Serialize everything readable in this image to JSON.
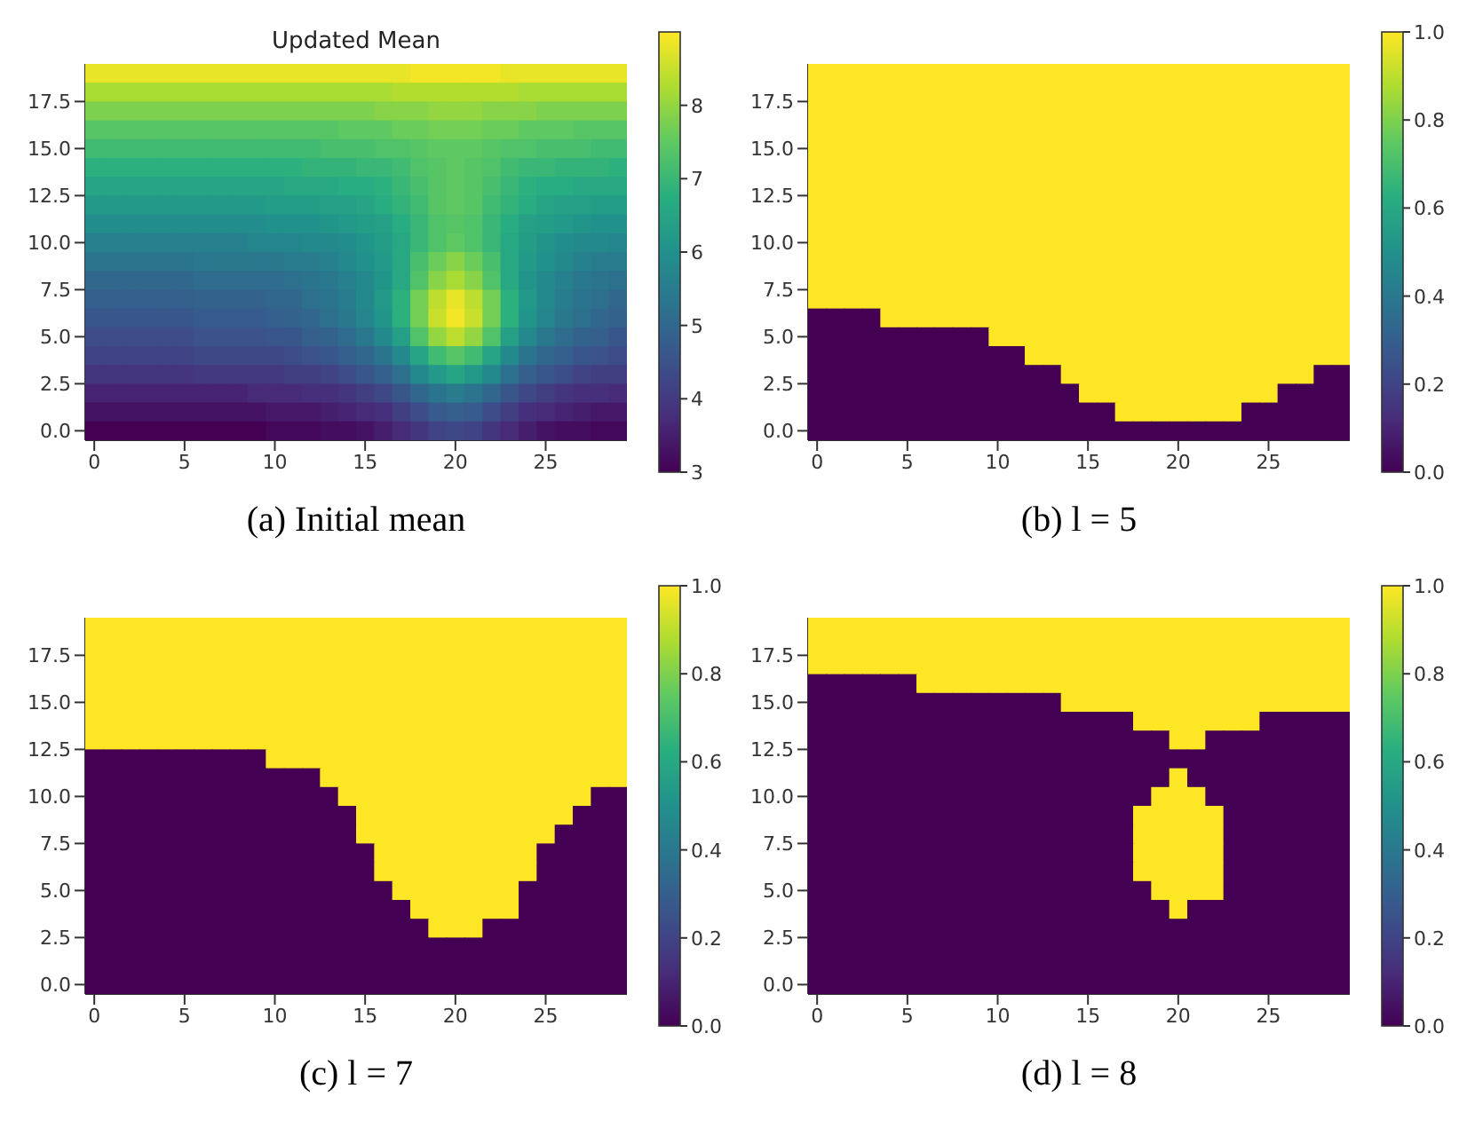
{
  "chart_data": [
    {
      "type": "heatmap",
      "title": "Updated Mean",
      "annotations": [
        "(a) Initial mean"
      ],
      "xlim": [
        -0.5,
        29.5
      ],
      "xticks": [
        0,
        5,
        10,
        15,
        20,
        25
      ],
      "ylim": [
        -0.5,
        19.5
      ],
      "yticks": [
        {
          "value": 0,
          "label": "0.0"
        },
        {
          "value": 2.5,
          "label": "2.5"
        },
        {
          "value": 5,
          "label": "5.0"
        },
        {
          "value": 7.5,
          "label": "7.5"
        },
        {
          "value": 10,
          "label": "10.0"
        },
        {
          "value": 12.5,
          "label": "12.5"
        },
        {
          "value": 15,
          "label": "15.0"
        },
        {
          "value": 17.5,
          "label": "17.5"
        }
      ],
      "clim": [
        3,
        9
      ],
      "cticks": [
        3,
        4,
        5,
        6,
        7,
        8
      ],
      "cells": [
        [
          8.8,
          8.8,
          8.8,
          8.8,
          8.8,
          8.8,
          8.8,
          8.8,
          8.8,
          8.8,
          8.8,
          8.8,
          8.8,
          8.8,
          8.8,
          8.8,
          8.8,
          8.8,
          8.9,
          8.9,
          8.9,
          8.9,
          8.9,
          8.8,
          8.8,
          8.8,
          8.8,
          8.8,
          8.8,
          8.8
        ],
        [
          8.2,
          8.2,
          8.2,
          8.2,
          8.2,
          8.2,
          8.2,
          8.2,
          8.2,
          8.2,
          8.2,
          8.2,
          8.2,
          8.2,
          8.2,
          8.2,
          8.2,
          8.3,
          8.3,
          8.3,
          8.3,
          8.3,
          8.3,
          8.3,
          8.2,
          8.2,
          8.2,
          8.2,
          8.2,
          8.2
        ],
        [
          7.8,
          7.8,
          7.8,
          7.8,
          7.8,
          7.8,
          7.8,
          7.8,
          7.8,
          7.8,
          7.8,
          7.8,
          7.8,
          7.8,
          7.8,
          7.8,
          7.9,
          7.9,
          7.9,
          8.0,
          8.0,
          8.0,
          7.9,
          7.9,
          7.9,
          7.8,
          7.8,
          7.8,
          7.8,
          7.8
        ],
        [
          7.4,
          7.4,
          7.4,
          7.4,
          7.4,
          7.4,
          7.4,
          7.4,
          7.4,
          7.4,
          7.4,
          7.4,
          7.4,
          7.4,
          7.5,
          7.5,
          7.5,
          7.6,
          7.6,
          7.7,
          7.7,
          7.7,
          7.6,
          7.6,
          7.5,
          7.5,
          7.5,
          7.4,
          7.4,
          7.4
        ],
        [
          7.1,
          7.1,
          7.1,
          7.1,
          7.1,
          7.1,
          7.1,
          7.1,
          7.1,
          7.1,
          7.1,
          7.1,
          7.1,
          7.2,
          7.2,
          7.2,
          7.3,
          7.3,
          7.4,
          7.5,
          7.5,
          7.5,
          7.4,
          7.3,
          7.3,
          7.2,
          7.2,
          7.2,
          7.1,
          7.1
        ],
        [
          6.8,
          6.8,
          6.8,
          6.8,
          6.8,
          6.8,
          6.8,
          6.8,
          6.8,
          6.8,
          6.8,
          6.8,
          6.9,
          6.9,
          6.9,
          7.0,
          7.0,
          7.1,
          7.3,
          7.4,
          7.5,
          7.4,
          7.3,
          7.1,
          7.0,
          7.0,
          6.9,
          6.9,
          6.9,
          6.8
        ],
        [
          6.5,
          6.5,
          6.5,
          6.5,
          6.5,
          6.5,
          6.5,
          6.5,
          6.5,
          6.5,
          6.5,
          6.6,
          6.6,
          6.6,
          6.7,
          6.7,
          6.8,
          7.0,
          7.2,
          7.4,
          7.5,
          7.4,
          7.2,
          7.0,
          6.8,
          6.7,
          6.7,
          6.6,
          6.6,
          6.6
        ],
        [
          6.2,
          6.2,
          6.2,
          6.2,
          6.2,
          6.2,
          6.2,
          6.2,
          6.2,
          6.2,
          6.3,
          6.3,
          6.3,
          6.4,
          6.4,
          6.5,
          6.7,
          6.9,
          7.1,
          7.4,
          7.5,
          7.4,
          7.1,
          6.9,
          6.7,
          6.5,
          6.4,
          6.4,
          6.3,
          6.3
        ],
        [
          5.9,
          5.9,
          5.9,
          5.9,
          5.9,
          5.9,
          5.9,
          5.9,
          5.9,
          5.9,
          6.0,
          6.0,
          6.0,
          6.1,
          6.2,
          6.3,
          6.4,
          6.7,
          7.0,
          7.3,
          7.4,
          7.3,
          7.0,
          6.7,
          6.4,
          6.3,
          6.2,
          6.1,
          6.0,
          6.0
        ],
        [
          5.6,
          5.6,
          5.6,
          5.6,
          5.6,
          5.6,
          5.6,
          5.6,
          5.6,
          5.7,
          5.7,
          5.7,
          5.8,
          5.8,
          5.9,
          6.1,
          6.3,
          6.6,
          7.0,
          7.3,
          7.5,
          7.3,
          7.0,
          6.6,
          6.3,
          6.1,
          5.9,
          5.8,
          5.8,
          5.7
        ],
        [
          5.3,
          5.3,
          5.3,
          5.3,
          5.3,
          5.3,
          5.4,
          5.4,
          5.4,
          5.4,
          5.4,
          5.5,
          5.5,
          5.6,
          5.8,
          6.0,
          6.2,
          6.6,
          7.2,
          7.6,
          7.9,
          7.6,
          7.2,
          6.6,
          6.2,
          6.0,
          5.8,
          5.6,
          5.5,
          5.5
        ],
        [
          5.0,
          5.0,
          5.0,
          5.0,
          5.0,
          5.0,
          5.1,
          5.1,
          5.1,
          5.1,
          5.1,
          5.2,
          5.3,
          5.4,
          5.6,
          5.8,
          6.1,
          6.6,
          7.3,
          7.9,
          8.2,
          7.9,
          7.3,
          6.6,
          6.1,
          5.8,
          5.6,
          5.4,
          5.3,
          5.2
        ],
        [
          4.8,
          4.8,
          4.8,
          4.8,
          4.8,
          4.8,
          4.9,
          4.9,
          4.9,
          4.9,
          5.0,
          5.0,
          5.2,
          5.3,
          5.5,
          5.8,
          6.2,
          6.8,
          7.7,
          8.4,
          8.8,
          8.4,
          7.7,
          6.8,
          6.2,
          5.8,
          5.5,
          5.3,
          5.2,
          5.0
        ],
        [
          4.6,
          4.6,
          4.6,
          4.6,
          4.6,
          4.6,
          4.7,
          4.7,
          4.7,
          4.7,
          4.8,
          4.9,
          5.0,
          5.2,
          5.4,
          5.7,
          6.1,
          6.8,
          7.7,
          8.5,
          8.9,
          8.5,
          7.7,
          6.8,
          6.1,
          5.7,
          5.4,
          5.2,
          5.0,
          4.9
        ],
        [
          4.4,
          4.4,
          4.4,
          4.4,
          4.4,
          4.4,
          4.5,
          4.5,
          4.5,
          4.5,
          4.6,
          4.6,
          4.8,
          4.9,
          5.1,
          5.4,
          5.8,
          6.4,
          7.3,
          8.0,
          8.4,
          8.0,
          7.3,
          6.4,
          5.8,
          5.4,
          5.1,
          4.9,
          4.8,
          4.6
        ],
        [
          4.2,
          4.2,
          4.2,
          4.2,
          4.2,
          4.2,
          4.3,
          4.3,
          4.3,
          4.3,
          4.3,
          4.4,
          4.5,
          4.6,
          4.8,
          5.0,
          5.3,
          5.8,
          6.5,
          7.1,
          7.4,
          7.1,
          6.5,
          5.8,
          5.3,
          5.0,
          4.8,
          4.6,
          4.5,
          4.4
        ],
        [
          3.9,
          3.9,
          3.9,
          3.9,
          3.9,
          3.9,
          4.0,
          4.0,
          4.0,
          4.0,
          4.0,
          4.1,
          4.1,
          4.2,
          4.4,
          4.6,
          4.8,
          5.2,
          5.8,
          6.2,
          6.5,
          6.2,
          5.8,
          5.2,
          4.8,
          4.6,
          4.4,
          4.2,
          4.1,
          4.1
        ],
        [
          3.6,
          3.6,
          3.6,
          3.6,
          3.6,
          3.6,
          3.6,
          3.6,
          3.6,
          3.7,
          3.7,
          3.7,
          3.8,
          3.8,
          3.9,
          4.1,
          4.3,
          4.6,
          5.0,
          5.3,
          5.5,
          5.3,
          5.0,
          4.6,
          4.3,
          4.1,
          3.9,
          3.8,
          3.8,
          3.7
        ],
        [
          3.3,
          3.3,
          3.3,
          3.3,
          3.3,
          3.3,
          3.3,
          3.3,
          3.3,
          3.3,
          3.4,
          3.4,
          3.4,
          3.5,
          3.6,
          3.7,
          3.8,
          4.1,
          4.4,
          4.7,
          4.8,
          4.7,
          4.4,
          4.1,
          3.8,
          3.7,
          3.6,
          3.5,
          3.4,
          3.4
        ],
        [
          3.0,
          3.0,
          3.0,
          3.0,
          3.0,
          3.0,
          3.0,
          3.0,
          3.0,
          3.0,
          3.1,
          3.1,
          3.1,
          3.2,
          3.2,
          3.3,
          3.5,
          3.7,
          3.9,
          4.2,
          4.3,
          4.2,
          3.9,
          3.7,
          3.5,
          3.3,
          3.2,
          3.2,
          3.1,
          3.1
        ]
      ]
    },
    {
      "type": "heatmap",
      "annotations": [
        "(b) l = 5"
      ],
      "xlim": [
        -0.5,
        29.5
      ],
      "xticks": [
        0,
        5,
        10,
        15,
        20,
        25
      ],
      "ylim": [
        -0.5,
        19.5
      ],
      "yticks": [
        {
          "value": 0,
          "label": "0.0"
        },
        {
          "value": 2.5,
          "label": "2.5"
        },
        {
          "value": 5,
          "label": "5.0"
        },
        {
          "value": 7.5,
          "label": "7.5"
        },
        {
          "value": 10,
          "label": "10.0"
        },
        {
          "value": 12.5,
          "label": "12.5"
        },
        {
          "value": 15,
          "label": "15.0"
        },
        {
          "value": 17.5,
          "label": "17.5"
        }
      ],
      "clim": [
        0,
        1
      ],
      "cticks": [
        {
          "value": 0,
          "label": "0.0"
        },
        {
          "value": 0.2,
          "label": "0.2"
        },
        {
          "value": 0.4,
          "label": "0.4"
        },
        {
          "value": 0.6,
          "label": "0.6"
        },
        {
          "value": 0.8,
          "label": "0.8"
        },
        {
          "value": 1,
          "label": "1.0"
        }
      ],
      "cells": [
        [
          1,
          1,
          1,
          1,
          1,
          1,
          1,
          1,
          1,
          1,
          1,
          1,
          1,
          1,
          1,
          1,
          1,
          1,
          1,
          1,
          1,
          1,
          1,
          1,
          1,
          1,
          1,
          1,
          1,
          1
        ],
        [
          1,
          1,
          1,
          1,
          1,
          1,
          1,
          1,
          1,
          1,
          1,
          1,
          1,
          1,
          1,
          1,
          1,
          1,
          1,
          1,
          1,
          1,
          1,
          1,
          1,
          1,
          1,
          1,
          1,
          1
        ],
        [
          1,
          1,
          1,
          1,
          1,
          1,
          1,
          1,
          1,
          1,
          1,
          1,
          1,
          1,
          1,
          1,
          1,
          1,
          1,
          1,
          1,
          1,
          1,
          1,
          1,
          1,
          1,
          1,
          1,
          1
        ],
        [
          1,
          1,
          1,
          1,
          1,
          1,
          1,
          1,
          1,
          1,
          1,
          1,
          1,
          1,
          1,
          1,
          1,
          1,
          1,
          1,
          1,
          1,
          1,
          1,
          1,
          1,
          1,
          1,
          1,
          1
        ],
        [
          1,
          1,
          1,
          1,
          1,
          1,
          1,
          1,
          1,
          1,
          1,
          1,
          1,
          1,
          1,
          1,
          1,
          1,
          1,
          1,
          1,
          1,
          1,
          1,
          1,
          1,
          1,
          1,
          1,
          1
        ],
        [
          1,
          1,
          1,
          1,
          1,
          1,
          1,
          1,
          1,
          1,
          1,
          1,
          1,
          1,
          1,
          1,
          1,
          1,
          1,
          1,
          1,
          1,
          1,
          1,
          1,
          1,
          1,
          1,
          1,
          1
        ],
        [
          1,
          1,
          1,
          1,
          1,
          1,
          1,
          1,
          1,
          1,
          1,
          1,
          1,
          1,
          1,
          1,
          1,
          1,
          1,
          1,
          1,
          1,
          1,
          1,
          1,
          1,
          1,
          1,
          1,
          1
        ],
        [
          1,
          1,
          1,
          1,
          1,
          1,
          1,
          1,
          1,
          1,
          1,
          1,
          1,
          1,
          1,
          1,
          1,
          1,
          1,
          1,
          1,
          1,
          1,
          1,
          1,
          1,
          1,
          1,
          1,
          1
        ],
        [
          1,
          1,
          1,
          1,
          1,
          1,
          1,
          1,
          1,
          1,
          1,
          1,
          1,
          1,
          1,
          1,
          1,
          1,
          1,
          1,
          1,
          1,
          1,
          1,
          1,
          1,
          1,
          1,
          1,
          1
        ],
        [
          1,
          1,
          1,
          1,
          1,
          1,
          1,
          1,
          1,
          1,
          1,
          1,
          1,
          1,
          1,
          1,
          1,
          1,
          1,
          1,
          1,
          1,
          1,
          1,
          1,
          1,
          1,
          1,
          1,
          1
        ],
        [
          1,
          1,
          1,
          1,
          1,
          1,
          1,
          1,
          1,
          1,
          1,
          1,
          1,
          1,
          1,
          1,
          1,
          1,
          1,
          1,
          1,
          1,
          1,
          1,
          1,
          1,
          1,
          1,
          1,
          1
        ],
        [
          1,
          1,
          1,
          1,
          1,
          1,
          1,
          1,
          1,
          1,
          1,
          1,
          1,
          1,
          1,
          1,
          1,
          1,
          1,
          1,
          1,
          1,
          1,
          1,
          1,
          1,
          1,
          1,
          1,
          1
        ],
        [
          1,
          1,
          1,
          1,
          1,
          1,
          1,
          1,
          1,
          1,
          1,
          1,
          1,
          1,
          1,
          1,
          1,
          1,
          1,
          1,
          1,
          1,
          1,
          1,
          1,
          1,
          1,
          1,
          1,
          1
        ],
        [
          0,
          0,
          0,
          0,
          1,
          1,
          1,
          1,
          1,
          1,
          1,
          1,
          1,
          1,
          1,
          1,
          1,
          1,
          1,
          1,
          1,
          1,
          1,
          1,
          1,
          1,
          1,
          1,
          1,
          1
        ],
        [
          0,
          0,
          0,
          0,
          0,
          0,
          0,
          0,
          0,
          0,
          1,
          1,
          1,
          1,
          1,
          1,
          1,
          1,
          1,
          1,
          1,
          1,
          1,
          1,
          1,
          1,
          1,
          1,
          1,
          1
        ],
        [
          0,
          0,
          0,
          0,
          0,
          0,
          0,
          0,
          0,
          0,
          0,
          0,
          1,
          1,
          1,
          1,
          1,
          1,
          1,
          1,
          1,
          1,
          1,
          1,
          1,
          1,
          1,
          1,
          1,
          1
        ],
        [
          0,
          0,
          0,
          0,
          0,
          0,
          0,
          0,
          0,
          0,
          0,
          0,
          0,
          0,
          1,
          1,
          1,
          1,
          1,
          1,
          1,
          1,
          1,
          1,
          1,
          1,
          1,
          1,
          0,
          0
        ],
        [
          0,
          0,
          0,
          0,
          0,
          0,
          0,
          0,
          0,
          0,
          0,
          0,
          0,
          0,
          0,
          1,
          1,
          1,
          1,
          1,
          1,
          1,
          1,
          1,
          1,
          1,
          0,
          0,
          0,
          0
        ],
        [
          0,
          0,
          0,
          0,
          0,
          0,
          0,
          0,
          0,
          0,
          0,
          0,
          0,
          0,
          0,
          0,
          0,
          1,
          1,
          1,
          1,
          1,
          1,
          1,
          0,
          0,
          0,
          0,
          0,
          0
        ],
        [
          0,
          0,
          0,
          0,
          0,
          0,
          0,
          0,
          0,
          0,
          0,
          0,
          0,
          0,
          0,
          0,
          0,
          0,
          0,
          0,
          0,
          0,
          0,
          0,
          0,
          0,
          0,
          0,
          0,
          0
        ]
      ]
    },
    {
      "type": "heatmap",
      "annotations": [
        "(c) l = 7"
      ],
      "xlim": [
        -0.5,
        29.5
      ],
      "xticks": [
        0,
        5,
        10,
        15,
        20,
        25
      ],
      "ylim": [
        -0.5,
        19.5
      ],
      "yticks": [
        {
          "value": 0,
          "label": "0.0"
        },
        {
          "value": 2.5,
          "label": "2.5"
        },
        {
          "value": 5,
          "label": "5.0"
        },
        {
          "value": 7.5,
          "label": "7.5"
        },
        {
          "value": 10,
          "label": "10.0"
        },
        {
          "value": 12.5,
          "label": "12.5"
        },
        {
          "value": 15,
          "label": "15.0"
        },
        {
          "value": 17.5,
          "label": "17.5"
        }
      ],
      "clim": [
        0,
        1
      ],
      "cticks": [
        {
          "value": 0,
          "label": "0.0"
        },
        {
          "value": 0.2,
          "label": "0.2"
        },
        {
          "value": 0.4,
          "label": "0.4"
        },
        {
          "value": 0.6,
          "label": "0.6"
        },
        {
          "value": 0.8,
          "label": "0.8"
        },
        {
          "value": 1,
          "label": "1.0"
        }
      ],
      "cells": [
        [
          1,
          1,
          1,
          1,
          1,
          1,
          1,
          1,
          1,
          1,
          1,
          1,
          1,
          1,
          1,
          1,
          1,
          1,
          1,
          1,
          1,
          1,
          1,
          1,
          1,
          1,
          1,
          1,
          1,
          1
        ],
        [
          1,
          1,
          1,
          1,
          1,
          1,
          1,
          1,
          1,
          1,
          1,
          1,
          1,
          1,
          1,
          1,
          1,
          1,
          1,
          1,
          1,
          1,
          1,
          1,
          1,
          1,
          1,
          1,
          1,
          1
        ],
        [
          1,
          1,
          1,
          1,
          1,
          1,
          1,
          1,
          1,
          1,
          1,
          1,
          1,
          1,
          1,
          1,
          1,
          1,
          1,
          1,
          1,
          1,
          1,
          1,
          1,
          1,
          1,
          1,
          1,
          1
        ],
        [
          1,
          1,
          1,
          1,
          1,
          1,
          1,
          1,
          1,
          1,
          1,
          1,
          1,
          1,
          1,
          1,
          1,
          1,
          1,
          1,
          1,
          1,
          1,
          1,
          1,
          1,
          1,
          1,
          1,
          1
        ],
        [
          1,
          1,
          1,
          1,
          1,
          1,
          1,
          1,
          1,
          1,
          1,
          1,
          1,
          1,
          1,
          1,
          1,
          1,
          1,
          1,
          1,
          1,
          1,
          1,
          1,
          1,
          1,
          1,
          1,
          1
        ],
        [
          1,
          1,
          1,
          1,
          1,
          1,
          1,
          1,
          1,
          1,
          1,
          1,
          1,
          1,
          1,
          1,
          1,
          1,
          1,
          1,
          1,
          1,
          1,
          1,
          1,
          1,
          1,
          1,
          1,
          1
        ],
        [
          1,
          1,
          1,
          1,
          1,
          1,
          1,
          1,
          1,
          1,
          1,
          1,
          1,
          1,
          1,
          1,
          1,
          1,
          1,
          1,
          1,
          1,
          1,
          1,
          1,
          1,
          1,
          1,
          1,
          1
        ],
        [
          0,
          0,
          0,
          0,
          0,
          0,
          0,
          0,
          0,
          0,
          1,
          1,
          1,
          1,
          1,
          1,
          1,
          1,
          1,
          1,
          1,
          1,
          1,
          1,
          1,
          1,
          1,
          1,
          1,
          1
        ],
        [
          0,
          0,
          0,
          0,
          0,
          0,
          0,
          0,
          0,
          0,
          0,
          0,
          0,
          1,
          1,
          1,
          1,
          1,
          1,
          1,
          1,
          1,
          1,
          1,
          1,
          1,
          1,
          1,
          1,
          1
        ],
        [
          0,
          0,
          0,
          0,
          0,
          0,
          0,
          0,
          0,
          0,
          0,
          0,
          0,
          0,
          1,
          1,
          1,
          1,
          1,
          1,
          1,
          1,
          1,
          1,
          1,
          1,
          1,
          1,
          0,
          0
        ],
        [
          0,
          0,
          0,
          0,
          0,
          0,
          0,
          0,
          0,
          0,
          0,
          0,
          0,
          0,
          0,
          1,
          1,
          1,
          1,
          1,
          1,
          1,
          1,
          1,
          1,
          1,
          1,
          0,
          0,
          0
        ],
        [
          0,
          0,
          0,
          0,
          0,
          0,
          0,
          0,
          0,
          0,
          0,
          0,
          0,
          0,
          0,
          1,
          1,
          1,
          1,
          1,
          1,
          1,
          1,
          1,
          1,
          1,
          0,
          0,
          0,
          0
        ],
        [
          0,
          0,
          0,
          0,
          0,
          0,
          0,
          0,
          0,
          0,
          0,
          0,
          0,
          0,
          0,
          0,
          1,
          1,
          1,
          1,
          1,
          1,
          1,
          1,
          1,
          0,
          0,
          0,
          0,
          0
        ],
        [
          0,
          0,
          0,
          0,
          0,
          0,
          0,
          0,
          0,
          0,
          0,
          0,
          0,
          0,
          0,
          0,
          1,
          1,
          1,
          1,
          1,
          1,
          1,
          1,
          1,
          0,
          0,
          0,
          0,
          0
        ],
        [
          0,
          0,
          0,
          0,
          0,
          0,
          0,
          0,
          0,
          0,
          0,
          0,
          0,
          0,
          0,
          0,
          0,
          1,
          1,
          1,
          1,
          1,
          1,
          1,
          0,
          0,
          0,
          0,
          0,
          0
        ],
        [
          0,
          0,
          0,
          0,
          0,
          0,
          0,
          0,
          0,
          0,
          0,
          0,
          0,
          0,
          0,
          0,
          0,
          0,
          1,
          1,
          1,
          1,
          1,
          1,
          0,
          0,
          0,
          0,
          0,
          0
        ],
        [
          0,
          0,
          0,
          0,
          0,
          0,
          0,
          0,
          0,
          0,
          0,
          0,
          0,
          0,
          0,
          0,
          0,
          0,
          0,
          1,
          1,
          1,
          0,
          0,
          0,
          0,
          0,
          0,
          0,
          0
        ],
        [
          0,
          0,
          0,
          0,
          0,
          0,
          0,
          0,
          0,
          0,
          0,
          0,
          0,
          0,
          0,
          0,
          0,
          0,
          0,
          0,
          0,
          0,
          0,
          0,
          0,
          0,
          0,
          0,
          0,
          0
        ],
        [
          0,
          0,
          0,
          0,
          0,
          0,
          0,
          0,
          0,
          0,
          0,
          0,
          0,
          0,
          0,
          0,
          0,
          0,
          0,
          0,
          0,
          0,
          0,
          0,
          0,
          0,
          0,
          0,
          0,
          0
        ],
        [
          0,
          0,
          0,
          0,
          0,
          0,
          0,
          0,
          0,
          0,
          0,
          0,
          0,
          0,
          0,
          0,
          0,
          0,
          0,
          0,
          0,
          0,
          0,
          0,
          0,
          0,
          0,
          0,
          0,
          0
        ]
      ]
    },
    {
      "type": "heatmap",
      "annotations": [
        "(d) l = 8"
      ],
      "xlim": [
        -0.5,
        29.5
      ],
      "xticks": [
        0,
        5,
        10,
        15,
        20,
        25
      ],
      "ylim": [
        -0.5,
        19.5
      ],
      "yticks": [
        {
          "value": 0,
          "label": "0.0"
        },
        {
          "value": 2.5,
          "label": "2.5"
        },
        {
          "value": 5,
          "label": "5.0"
        },
        {
          "value": 7.5,
          "label": "7.5"
        },
        {
          "value": 10,
          "label": "10.0"
        },
        {
          "value": 12.5,
          "label": "12.5"
        },
        {
          "value": 15,
          "label": "15.0"
        },
        {
          "value": 17.5,
          "label": "17.5"
        }
      ],
      "clim": [
        0,
        1
      ],
      "cticks": [
        {
          "value": 0,
          "label": "0.0"
        },
        {
          "value": 0.2,
          "label": "0.2"
        },
        {
          "value": 0.4,
          "label": "0.4"
        },
        {
          "value": 0.6,
          "label": "0.6"
        },
        {
          "value": 0.8,
          "label": "0.8"
        },
        {
          "value": 1,
          "label": "1.0"
        }
      ],
      "cells": [
        [
          1,
          1,
          1,
          1,
          1,
          1,
          1,
          1,
          1,
          1,
          1,
          1,
          1,
          1,
          1,
          1,
          1,
          1,
          1,
          1,
          1,
          1,
          1,
          1,
          1,
          1,
          1,
          1,
          1,
          1
        ],
        [
          1,
          1,
          1,
          1,
          1,
          1,
          1,
          1,
          1,
          1,
          1,
          1,
          1,
          1,
          1,
          1,
          1,
          1,
          1,
          1,
          1,
          1,
          1,
          1,
          1,
          1,
          1,
          1,
          1,
          1
        ],
        [
          1,
          1,
          1,
          1,
          1,
          1,
          1,
          1,
          1,
          1,
          1,
          1,
          1,
          1,
          1,
          1,
          1,
          1,
          1,
          1,
          1,
          1,
          1,
          1,
          1,
          1,
          1,
          1,
          1,
          1
        ],
        [
          0,
          0,
          0,
          0,
          0,
          0,
          1,
          1,
          1,
          1,
          1,
          1,
          1,
          1,
          1,
          1,
          1,
          1,
          1,
          1,
          1,
          1,
          1,
          1,
          1,
          1,
          1,
          1,
          1,
          1
        ],
        [
          0,
          0,
          0,
          0,
          0,
          0,
          0,
          0,
          0,
          0,
          0,
          0,
          0,
          0,
          1,
          1,
          1,
          1,
          1,
          1,
          1,
          1,
          1,
          1,
          1,
          1,
          1,
          1,
          1,
          1
        ],
        [
          0,
          0,
          0,
          0,
          0,
          0,
          0,
          0,
          0,
          0,
          0,
          0,
          0,
          0,
          0,
          0,
          0,
          0,
          1,
          1,
          1,
          1,
          1,
          1,
          1,
          0,
          0,
          0,
          0,
          0
        ],
        [
          0,
          0,
          0,
          0,
          0,
          0,
          0,
          0,
          0,
          0,
          0,
          0,
          0,
          0,
          0,
          0,
          0,
          0,
          0,
          0,
          1,
          1,
          0,
          0,
          0,
          0,
          0,
          0,
          0,
          0
        ],
        [
          0,
          0,
          0,
          0,
          0,
          0,
          0,
          0,
          0,
          0,
          0,
          0,
          0,
          0,
          0,
          0,
          0,
          0,
          0,
          0,
          0,
          0,
          0,
          0,
          0,
          0,
          0,
          0,
          0,
          0
        ],
        [
          0,
          0,
          0,
          0,
          0,
          0,
          0,
          0,
          0,
          0,
          0,
          0,
          0,
          0,
          0,
          0,
          0,
          0,
          0,
          0,
          1,
          0,
          0,
          0,
          0,
          0,
          0,
          0,
          0,
          0
        ],
        [
          0,
          0,
          0,
          0,
          0,
          0,
          0,
          0,
          0,
          0,
          0,
          0,
          0,
          0,
          0,
          0,
          0,
          0,
          0,
          1,
          1,
          1,
          0,
          0,
          0,
          0,
          0,
          0,
          0,
          0
        ],
        [
          0,
          0,
          0,
          0,
          0,
          0,
          0,
          0,
          0,
          0,
          0,
          0,
          0,
          0,
          0,
          0,
          0,
          0,
          1,
          1,
          1,
          1,
          1,
          0,
          0,
          0,
          0,
          0,
          0,
          0
        ],
        [
          0,
          0,
          0,
          0,
          0,
          0,
          0,
          0,
          0,
          0,
          0,
          0,
          0,
          0,
          0,
          0,
          0,
          0,
          1,
          1,
          1,
          1,
          1,
          0,
          0,
          0,
          0,
          0,
          0,
          0
        ],
        [
          0,
          0,
          0,
          0,
          0,
          0,
          0,
          0,
          0,
          0,
          0,
          0,
          0,
          0,
          0,
          0,
          0,
          0,
          1,
          1,
          1,
          1,
          1,
          0,
          0,
          0,
          0,
          0,
          0,
          0
        ],
        [
          0,
          0,
          0,
          0,
          0,
          0,
          0,
          0,
          0,
          0,
          0,
          0,
          0,
          0,
          0,
          0,
          0,
          0,
          1,
          1,
          1,
          1,
          1,
          0,
          0,
          0,
          0,
          0,
          0,
          0
        ],
        [
          0,
          0,
          0,
          0,
          0,
          0,
          0,
          0,
          0,
          0,
          0,
          0,
          0,
          0,
          0,
          0,
          0,
          0,
          0,
          1,
          1,
          1,
          1,
          0,
          0,
          0,
          0,
          0,
          0,
          0
        ],
        [
          0,
          0,
          0,
          0,
          0,
          0,
          0,
          0,
          0,
          0,
          0,
          0,
          0,
          0,
          0,
          0,
          0,
          0,
          0,
          0,
          1,
          0,
          0,
          0,
          0,
          0,
          0,
          0,
          0,
          0
        ],
        [
          0,
          0,
          0,
          0,
          0,
          0,
          0,
          0,
          0,
          0,
          0,
          0,
          0,
          0,
          0,
          0,
          0,
          0,
          0,
          0,
          0,
          0,
          0,
          0,
          0,
          0,
          0,
          0,
          0,
          0
        ],
        [
          0,
          0,
          0,
          0,
          0,
          0,
          0,
          0,
          0,
          0,
          0,
          0,
          0,
          0,
          0,
          0,
          0,
          0,
          0,
          0,
          0,
          0,
          0,
          0,
          0,
          0,
          0,
          0,
          0,
          0
        ],
        [
          0,
          0,
          0,
          0,
          0,
          0,
          0,
          0,
          0,
          0,
          0,
          0,
          0,
          0,
          0,
          0,
          0,
          0,
          0,
          0,
          0,
          0,
          0,
          0,
          0,
          0,
          0,
          0,
          0,
          0
        ],
        [
          0,
          0,
          0,
          0,
          0,
          0,
          0,
          0,
          0,
          0,
          0,
          0,
          0,
          0,
          0,
          0,
          0,
          0,
          0,
          0,
          0,
          0,
          0,
          0,
          0,
          0,
          0,
          0,
          0,
          0
        ]
      ]
    }
  ]
}
